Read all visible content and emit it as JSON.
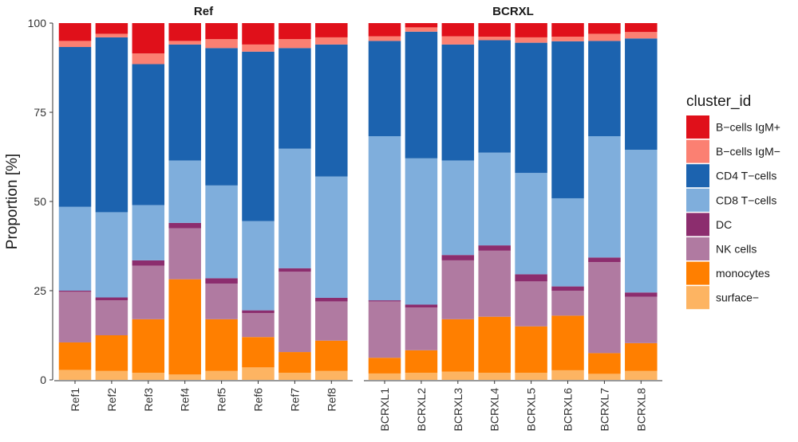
{
  "chart_data": {
    "type": "bar",
    "stacked": true,
    "ylabel": "Proportion [%]",
    "ylim": [
      0,
      100
    ],
    "yticks": [
      0,
      25,
      50,
      75,
      100
    ],
    "legend_title": "cluster_id",
    "legend_position": "right",
    "panels": [
      {
        "title": "Ref",
        "categories": [
          "Ref1",
          "Ref2",
          "Ref3",
          "Ref4",
          "Ref5",
          "Ref6",
          "Ref7",
          "Ref8"
        ],
        "series": [
          {
            "name": "surface−",
            "color": "#FDB462",
            "values": [
              2.8,
              2.5,
              2.0,
              1.5,
              2.5,
              3.5,
              2.0,
              2.5
            ]
          },
          {
            "name": "monocytes",
            "color": "#FF7F00",
            "values": [
              7.7,
              10.0,
              15.0,
              26.7,
              14.5,
              8.5,
              5.8,
              8.5
            ]
          },
          {
            "name": "NK cells",
            "color": "#B07AA1",
            "values": [
              14.2,
              9.8,
              15.0,
              14.3,
              10.0,
              6.7,
              22.5,
              11.0
            ]
          },
          {
            "name": "DC",
            "color": "#8C2D6E",
            "values": [
              0.3,
              0.8,
              1.5,
              1.5,
              1.5,
              0.8,
              1.0,
              1.0
            ]
          },
          {
            "name": "CD8 T−cells",
            "color": "#7FAEDC",
            "values": [
              23.5,
              23.9,
              15.5,
              17.5,
              26.0,
              25.0,
              33.5,
              34.0
            ]
          },
          {
            "name": "CD4 T−cells",
            "color": "#1C63AF",
            "values": [
              44.8,
              49.0,
              39.5,
              32.5,
              38.5,
              47.5,
              28.2,
              37.0
            ]
          },
          {
            "name": "B−cells IgM−",
            "color": "#FB8072",
            "values": [
              1.7,
              1.0,
              3.0,
              1.0,
              2.5,
              2.0,
              2.5,
              2.0
            ]
          },
          {
            "name": "B−cells IgM+",
            "color": "#E0101A",
            "values": [
              5.0,
              3.0,
              8.5,
              5.0,
              4.5,
              6.0,
              4.5,
              4.0
            ]
          }
        ]
      },
      {
        "title": "BCRXL",
        "categories": [
          "BCRXL1",
          "BCRXL2",
          "BCRXL3",
          "BCRXL4",
          "BCRXL5",
          "BCRXL6",
          "BCRXL7",
          "BCRXL8"
        ],
        "series": [
          {
            "name": "surface−",
            "color": "#FDB462",
            "values": [
              1.8,
              2.0,
              2.3,
              2.0,
              2.0,
              2.7,
              1.7,
              2.5
            ]
          },
          {
            "name": "monocytes",
            "color": "#FF7F00",
            "values": [
              4.4,
              6.3,
              14.7,
              15.7,
              13.0,
              15.3,
              5.8,
              7.8
            ]
          },
          {
            "name": "NK cells",
            "color": "#B07AA1",
            "values": [
              15.8,
              12.0,
              16.5,
              18.5,
              12.6,
              7.0,
              25.5,
              13.0
            ]
          },
          {
            "name": "DC",
            "color": "#8C2D6E",
            "values": [
              0.3,
              0.8,
              1.5,
              1.5,
              2.0,
              1.2,
              1.3,
              1.2
            ]
          },
          {
            "name": "CD8 T−cells",
            "color": "#7FAEDC",
            "values": [
              46.0,
              41.0,
              26.5,
              26.0,
              28.4,
              24.7,
              34.0,
              40.0
            ]
          },
          {
            "name": "CD4 T−cells",
            "color": "#1C63AF",
            "values": [
              26.7,
              35.5,
              32.5,
              31.5,
              36.5,
              44.0,
              26.7,
              31.2
            ]
          },
          {
            "name": "B−cells IgM−",
            "color": "#FB8072",
            "values": [
              1.3,
              1.2,
              2.3,
              1.0,
              1.5,
              1.3,
              2.0,
              1.8
            ]
          },
          {
            "name": "B−cells IgM+",
            "color": "#E0101A",
            "values": [
              3.7,
              1.2,
              3.7,
              3.8,
              4.0,
              3.8,
              3.0,
              2.5
            ]
          }
        ]
      }
    ],
    "legend": [
      {
        "name": "B−cells IgM+",
        "color": "#E0101A"
      },
      {
        "name": "B−cells IgM−",
        "color": "#FB8072"
      },
      {
        "name": "CD4 T−cells",
        "color": "#1C63AF"
      },
      {
        "name": "CD8 T−cells",
        "color": "#7FAEDC"
      },
      {
        "name": "DC",
        "color": "#8C2D6E"
      },
      {
        "name": "NK cells",
        "color": "#B07AA1"
      },
      {
        "name": "monocytes",
        "color": "#FF7F00"
      },
      {
        "name": "surface−",
        "color": "#FDB462"
      }
    ]
  }
}
